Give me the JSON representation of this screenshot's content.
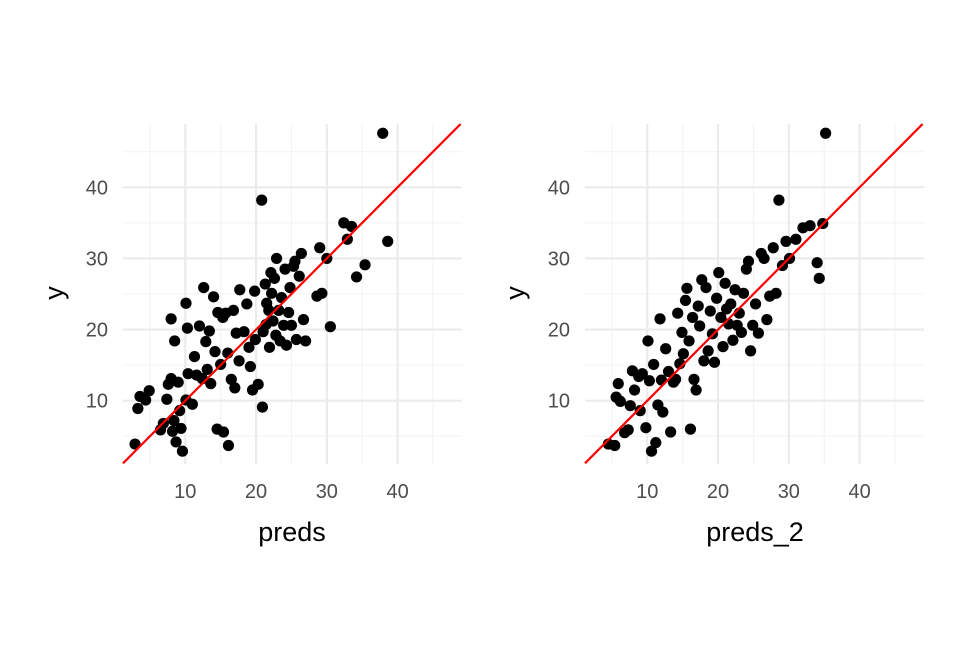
{
  "colors": {
    "background": "#ffffff",
    "grid_major": "#ebebeb",
    "grid_minor": "#f3f3f3",
    "points": "#000000",
    "reference_line": "#ff0000",
    "tick_label": "#4d4d4d"
  },
  "chart_data": [
    {
      "type": "scatter",
      "xlabel": "preds",
      "ylabel": "y",
      "xlim": [
        1.2,
        49.1
      ],
      "ylim": [
        1.1,
        48.9
      ],
      "x_ticks": [
        10,
        20,
        30,
        40
      ],
      "y_ticks": [
        10,
        20,
        30,
        40
      ],
      "x_tick_labels": [
        "10",
        "20",
        "30",
        "40"
      ],
      "y_tick_labels": [
        "10",
        "20",
        "30",
        "40"
      ],
      "grid": true,
      "reference_line": {
        "slope": 1,
        "intercept": 0,
        "color": "#ff0000"
      },
      "points": [
        [
          2.9,
          3.9
        ],
        [
          3.3,
          8.9
        ],
        [
          3.6,
          10.6
        ],
        [
          4.4,
          10.1
        ],
        [
          4.9,
          11.4
        ],
        [
          6.5,
          5.9
        ],
        [
          6.9,
          6.8
        ],
        [
          7.4,
          10.2
        ],
        [
          7.6,
          12.3
        ],
        [
          8.0,
          13.1
        ],
        [
          8.0,
          21.5
        ],
        [
          8.4,
          7.2
        ],
        [
          8.2,
          5.7
        ],
        [
          8.7,
          4.2
        ],
        [
          8.5,
          18.4
        ],
        [
          9.0,
          12.6
        ],
        [
          9.2,
          8.6
        ],
        [
          9.4,
          6.1
        ],
        [
          9.6,
          2.9
        ],
        [
          10.1,
          10.1
        ],
        [
          10.1,
          23.7
        ],
        [
          10.3,
          20.2
        ],
        [
          10.4,
          13.8
        ],
        [
          11.0,
          9.5
        ],
        [
          11.3,
          16.2
        ],
        [
          11.6,
          13.6
        ],
        [
          12.0,
          20.5
        ],
        [
          12.4,
          13.1
        ],
        [
          12.6,
          25.9
        ],
        [
          12.9,
          18.3
        ],
        [
          13.1,
          14.4
        ],
        [
          13.4,
          19.8
        ],
        [
          13.6,
          12.4
        ],
        [
          14.0,
          24.6
        ],
        [
          14.2,
          16.9
        ],
        [
          14.5,
          6.0
        ],
        [
          14.6,
          22.4
        ],
        [
          15.0,
          15.1
        ],
        [
          15.3,
          21.7
        ],
        [
          15.4,
          5.6
        ],
        [
          15.7,
          22.3
        ],
        [
          16.0,
          16.7
        ],
        [
          16.1,
          3.7
        ],
        [
          16.5,
          13.0
        ],
        [
          16.8,
          22.7
        ],
        [
          17.0,
          11.8
        ],
        [
          17.2,
          19.5
        ],
        [
          17.6,
          15.6
        ],
        [
          17.7,
          25.6
        ],
        [
          18.3,
          19.7
        ],
        [
          18.7,
          23.6
        ],
        [
          19.0,
          17.5
        ],
        [
          19.2,
          14.8
        ],
        [
          19.5,
          11.5
        ],
        [
          19.8,
          25.4
        ],
        [
          19.9,
          18.6
        ],
        [
          20.3,
          12.3
        ],
        [
          20.8,
          38.2
        ],
        [
          20.9,
          9.1
        ],
        [
          21.0,
          19.7
        ],
        [
          21.3,
          26.4
        ],
        [
          21.4,
          20.7
        ],
        [
          21.5,
          23.7
        ],
        [
          21.8,
          22.7
        ],
        [
          21.9,
          17.5
        ],
        [
          22.1,
          28.0
        ],
        [
          22.2,
          25.1
        ],
        [
          22.4,
          21.2
        ],
        [
          22.6,
          27.2
        ],
        [
          22.8,
          19.2
        ],
        [
          22.9,
          30.0
        ],
        [
          23.2,
          22.7
        ],
        [
          23.4,
          18.4
        ],
        [
          23.6,
          24.5
        ],
        [
          23.9,
          20.6
        ],
        [
          24.1,
          28.5
        ],
        [
          24.3,
          17.8
        ],
        [
          24.6,
          22.4
        ],
        [
          24.8,
          25.9
        ],
        [
          25.0,
          20.6
        ],
        [
          25.3,
          28.9
        ],
        [
          25.5,
          29.6
        ],
        [
          25.7,
          18.6
        ],
        [
          26.1,
          27.5
        ],
        [
          26.4,
          30.7
        ],
        [
          26.7,
          21.4
        ],
        [
          27.0,
          18.4
        ],
        [
          28.6,
          24.7
        ],
        [
          29.0,
          31.5
        ],
        [
          29.3,
          25.1
        ],
        [
          30.0,
          30.0
        ],
        [
          30.5,
          20.4
        ],
        [
          32.4,
          35.0
        ],
        [
          32.9,
          32.7
        ],
        [
          33.5,
          34.5
        ],
        [
          34.2,
          27.4
        ],
        [
          35.4,
          29.1
        ],
        [
          37.9,
          47.6
        ],
        [
          38.6,
          32.4
        ]
      ]
    },
    {
      "type": "scatter",
      "xlabel": "preds_2",
      "ylabel": "y",
      "xlim": [
        1.2,
        49.1
      ],
      "ylim": [
        1.1,
        48.9
      ],
      "x_ticks": [
        10,
        20,
        30,
        40
      ],
      "y_ticks": [
        10,
        20,
        30,
        40
      ],
      "x_tick_labels": [
        "10",
        "20",
        "30",
        "40"
      ],
      "y_tick_labels": [
        "10",
        "20",
        "30",
        "40"
      ],
      "grid": true,
      "reference_line": {
        "slope": 1,
        "intercept": 0,
        "color": "#ff0000"
      },
      "points": [
        [
          4.5,
          3.9
        ],
        [
          5.4,
          3.7
        ],
        [
          5.6,
          10.5
        ],
        [
          5.9,
          12.4
        ],
        [
          6.2,
          9.9
        ],
        [
          6.8,
          5.5
        ],
        [
          7.3,
          5.9
        ],
        [
          7.6,
          9.3
        ],
        [
          7.9,
          14.2
        ],
        [
          8.2,
          11.5
        ],
        [
          8.8,
          13.4
        ],
        [
          9.0,
          8.6
        ],
        [
          9.3,
          13.8
        ],
        [
          9.8,
          6.2
        ],
        [
          10.1,
          18.4
        ],
        [
          10.3,
          12.8
        ],
        [
          10.6,
          2.9
        ],
        [
          10.9,
          15.1
        ],
        [
          11.2,
          4.1
        ],
        [
          11.5,
          9.4
        ],
        [
          11.8,
          21.5
        ],
        [
          12.0,
          12.9
        ],
        [
          12.2,
          8.4
        ],
        [
          12.6,
          17.3
        ],
        [
          13.0,
          14.1
        ],
        [
          13.3,
          5.6
        ],
        [
          13.7,
          12.6
        ],
        [
          14.0,
          13.0
        ],
        [
          14.3,
          22.3
        ],
        [
          14.6,
          15.2
        ],
        [
          14.9,
          19.6
        ],
        [
          15.1,
          16.6
        ],
        [
          15.4,
          24.1
        ],
        [
          15.6,
          25.8
        ],
        [
          15.9,
          18.4
        ],
        [
          16.1,
          6.0
        ],
        [
          16.4,
          21.7
        ],
        [
          16.6,
          13.0
        ],
        [
          16.9,
          11.5
        ],
        [
          17.2,
          23.3
        ],
        [
          17.4,
          20.5
        ],
        [
          17.7,
          27.0
        ],
        [
          18.0,
          15.6
        ],
        [
          18.3,
          25.9
        ],
        [
          18.6,
          17.0
        ],
        [
          18.9,
          22.6
        ],
        [
          19.2,
          19.4
        ],
        [
          19.5,
          15.4
        ],
        [
          19.8,
          24.4
        ],
        [
          20.1,
          28.0
        ],
        [
          20.4,
          21.7
        ],
        [
          20.7,
          17.6
        ],
        [
          21.0,
          26.5
        ],
        [
          21.2,
          22.9
        ],
        [
          21.5,
          20.8
        ],
        [
          21.8,
          23.6
        ],
        [
          22.1,
          18.5
        ],
        [
          22.4,
          25.6
        ],
        [
          22.7,
          20.6
        ],
        [
          23.0,
          22.3
        ],
        [
          23.3,
          19.6
        ],
        [
          23.6,
          25.1
        ],
        [
          24.0,
          28.5
        ],
        [
          24.3,
          29.6
        ],
        [
          24.6,
          17.0
        ],
        [
          24.9,
          20.6
        ],
        [
          25.3,
          23.6
        ],
        [
          25.7,
          19.5
        ],
        [
          26.1,
          30.7
        ],
        [
          26.5,
          30.0
        ],
        [
          26.9,
          21.4
        ],
        [
          27.3,
          24.7
        ],
        [
          27.8,
          31.5
        ],
        [
          28.2,
          25.1
        ],
        [
          28.6,
          38.2
        ],
        [
          29.1,
          29.0
        ],
        [
          29.6,
          32.4
        ],
        [
          30.1,
          30.0
        ],
        [
          31.0,
          32.7
        ],
        [
          32.0,
          34.3
        ],
        [
          33.0,
          34.6
        ],
        [
          34.0,
          29.4
        ],
        [
          34.3,
          27.2
        ],
        [
          35.2,
          47.6
        ],
        [
          34.8,
          34.9
        ]
      ]
    }
  ]
}
